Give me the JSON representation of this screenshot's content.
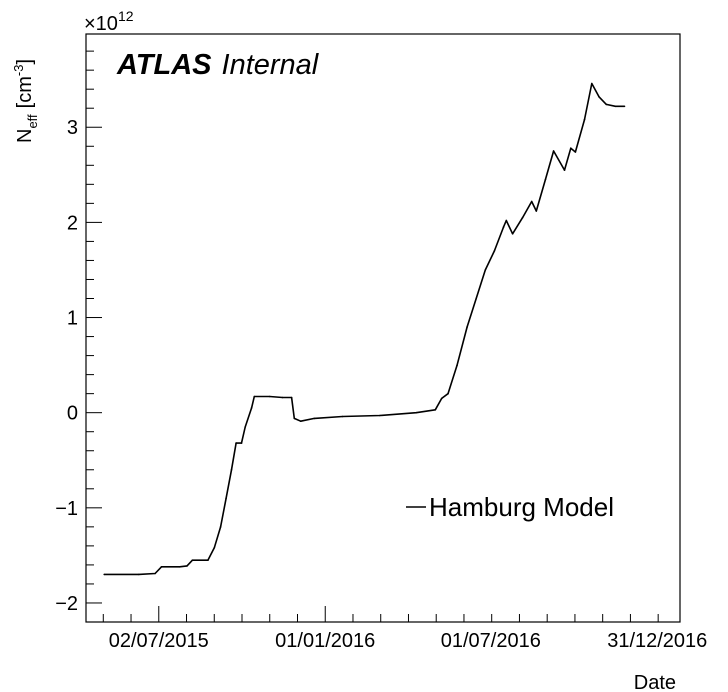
{
  "chart_data": {
    "type": "line",
    "experiment_label": "ATLAS",
    "status_label": "Internal",
    "xlabel": "Date",
    "ylabel_main": "N",
    "ylabel_sub": "eff",
    "ylabel_unit": "[cm",
    "ylabel_unit_exp": "-3",
    "ylabel_unit_close": "]",
    "y_multiplier_prefix": "×10",
    "y_multiplier_exp": "12",
    "xlim": [
      "2015-04-13",
      "2017-01-25"
    ],
    "ylim": [
      -2.2,
      3.98
    ],
    "grid": false,
    "legend_position": "bottom-right",
    "x_ticks": [
      {
        "date": "2015-07-02",
        "label": "02/07/2015"
      },
      {
        "date": "2016-01-01",
        "label": "01/01/2016"
      },
      {
        "date": "2016-07-01",
        "label": "01/07/2016"
      },
      {
        "date": "2016-12-31",
        "label": "31/12/2016"
      }
    ],
    "y_ticks": [
      {
        "value": -2,
        "label": "−2"
      },
      {
        "value": -1,
        "label": "−1"
      },
      {
        "value": 0,
        "label": "0"
      },
      {
        "value": 1,
        "label": "1"
      },
      {
        "value": 2,
        "label": "2"
      },
      {
        "value": 3,
        "label": "3"
      }
    ],
    "series": [
      {
        "name": "Hamburg Model",
        "color": "#000000",
        "points": [
          [
            "2015-05-03",
            -1.7
          ],
          [
            "2015-06-10",
            -1.7
          ],
          [
            "2015-06-28",
            -1.69
          ],
          [
            "2015-07-05",
            -1.62
          ],
          [
            "2015-07-25",
            -1.62
          ],
          [
            "2015-08-02",
            -1.61
          ],
          [
            "2015-08-08",
            -1.55
          ],
          [
            "2015-08-25",
            -1.55
          ],
          [
            "2015-09-01",
            -1.42
          ],
          [
            "2015-09-08",
            -1.2
          ],
          [
            "2015-09-14",
            -0.9
          ],
          [
            "2015-09-20",
            -0.6
          ],
          [
            "2015-09-25",
            -0.32
          ],
          [
            "2015-10-01",
            -0.32
          ],
          [
            "2015-10-05",
            -0.15
          ],
          [
            "2015-10-12",
            0.05
          ],
          [
            "2015-10-15",
            0.17
          ],
          [
            "2015-11-01",
            0.17
          ],
          [
            "2015-11-15",
            0.16
          ],
          [
            "2015-11-25",
            0.16
          ],
          [
            "2015-11-28",
            -0.06
          ],
          [
            "2015-12-05",
            -0.09
          ],
          [
            "2015-12-20",
            -0.06
          ],
          [
            "2016-01-20",
            -0.04
          ],
          [
            "2016-03-01",
            -0.03
          ],
          [
            "2016-04-10",
            0.0
          ],
          [
            "2016-05-01",
            0.03
          ],
          [
            "2016-05-08",
            0.15
          ],
          [
            "2016-05-15",
            0.2
          ],
          [
            "2016-05-25",
            0.5
          ],
          [
            "2016-06-05",
            0.9
          ],
          [
            "2016-06-15",
            1.2
          ],
          [
            "2016-06-25",
            1.5
          ],
          [
            "2016-07-05",
            1.7
          ],
          [
            "2016-07-15",
            1.95
          ],
          [
            "2016-07-18",
            2.02
          ],
          [
            "2016-07-25",
            1.88
          ],
          [
            "2016-08-05",
            2.05
          ],
          [
            "2016-08-15",
            2.22
          ],
          [
            "2016-08-20",
            2.12
          ],
          [
            "2016-08-30",
            2.45
          ],
          [
            "2016-09-08",
            2.75
          ],
          [
            "2016-09-20",
            2.55
          ],
          [
            "2016-09-27",
            2.78
          ],
          [
            "2016-10-02",
            2.74
          ],
          [
            "2016-10-12",
            3.08
          ],
          [
            "2016-10-20",
            3.46
          ],
          [
            "2016-10-28",
            3.32
          ],
          [
            "2016-11-05",
            3.24
          ],
          [
            "2016-11-15",
            3.22
          ],
          [
            "2016-11-25",
            3.22
          ]
        ]
      }
    ]
  }
}
